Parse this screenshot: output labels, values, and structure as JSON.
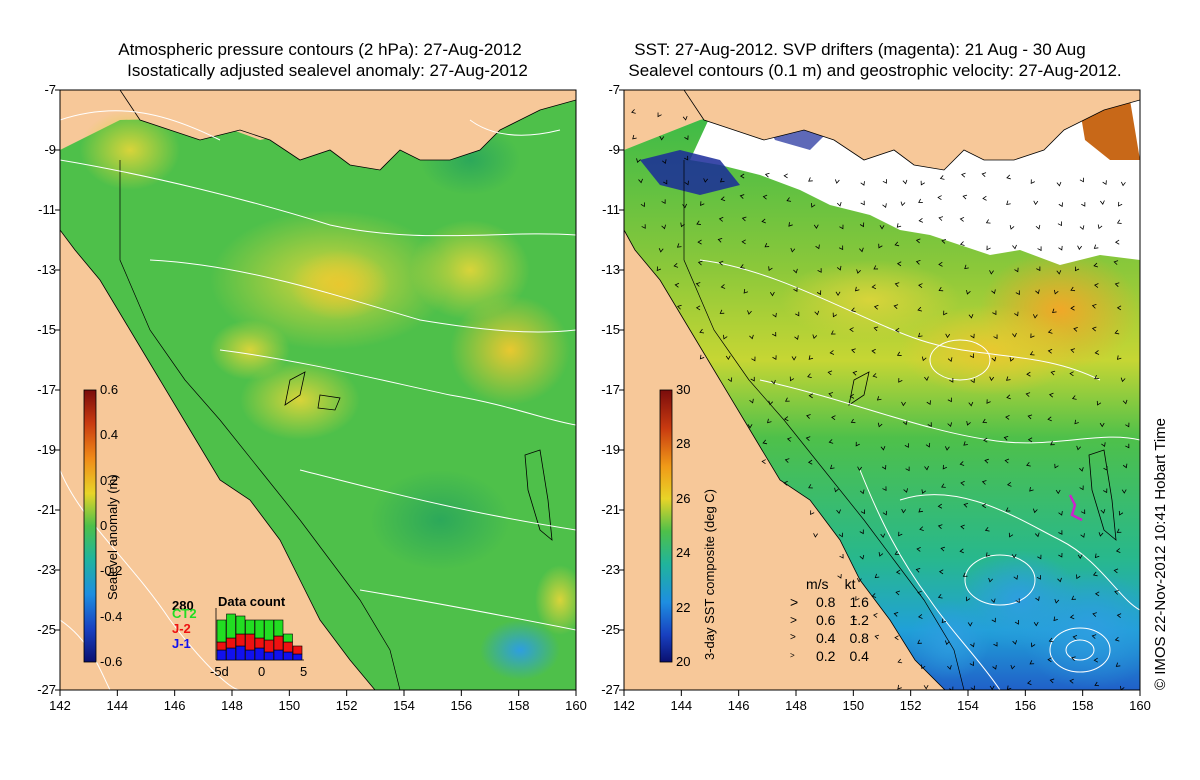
{
  "left_panel": {
    "title_line1": "Atmospheric pressure contours (2 hPa): 27-Aug-2012",
    "title_line2": "Isostatically adjusted sealevel anomaly: 27-Aug-2012",
    "colorbar": {
      "label": "Sealevel anomaly (m)",
      "ticks": [
        "0.6",
        "0.4",
        "0.2",
        "0",
        "-0.2",
        "-0.4",
        "-0.6"
      ]
    },
    "inset": {
      "title": "Data count",
      "max_label": "280",
      "x_ticks": [
        "-5d",
        "0",
        "5"
      ],
      "satellites": [
        {
          "name": "CT2",
          "color": "#22dd22"
        },
        {
          "name": "J-2",
          "color": "#ee1111"
        },
        {
          "name": "J-1",
          "color": "#1111ee"
        }
      ]
    }
  },
  "right_panel": {
    "title_line1": "SST: 27-Aug-2012. SVP drifters (magenta): 21 Aug - 30 Aug",
    "title_line2": "Sealevel contours (0.1 m) and geostrophic velocity: 27-Aug-2012.",
    "colorbar": {
      "label": "3-day SST composite (deg C)",
      "ticks": [
        "30",
        "28",
        "26",
        "24",
        "22",
        "20"
      ]
    },
    "velocity_legend": {
      "header_ms": "m/s",
      "header_kt": "kt",
      "rows": [
        {
          "ms": "0.8",
          "kt": "1.6"
        },
        {
          "ms": "0.6",
          "kt": "1.2"
        },
        {
          "ms": "0.4",
          "kt": "0.8"
        },
        {
          "ms": "0.2",
          "kt": "0.4"
        }
      ]
    }
  },
  "axes": {
    "lat_ticks": [
      "-7",
      "-9",
      "-11",
      "-13",
      "-15",
      "-17",
      "-19",
      "-21",
      "-23",
      "-25",
      "-27"
    ],
    "lon_ticks": [
      "142",
      "144",
      "146",
      "148",
      "150",
      "152",
      "154",
      "156",
      "158",
      "160"
    ]
  },
  "credit": "© IMOS 22-Nov-2012 10:41 Hobart Time",
  "colors": {
    "land": "#f7c899",
    "ocean_green": "#4ec04a",
    "anomaly_yellow": "#c8dc3c",
    "cloud_white": "#ffffff"
  }
}
